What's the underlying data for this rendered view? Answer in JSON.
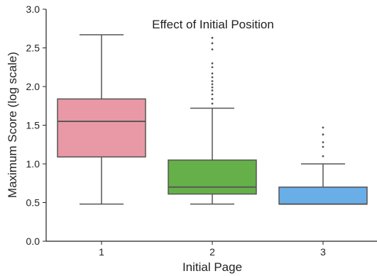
{
  "chart_data": {
    "type": "box",
    "title": "Effect of Initial Position",
    "xlabel": "Initial Page",
    "ylabel": "Maximum Score (log scale)",
    "ylim": [
      0.0,
      3.0
    ],
    "yticks": [
      "0.0",
      "0.5",
      "1.0",
      "1.5",
      "2.0",
      "2.5",
      "3.0"
    ],
    "categories": [
      "1",
      "2",
      "3"
    ],
    "boxes": [
      {
        "category": "1",
        "color": "#e899a5",
        "whisker_low": 0.48,
        "q1": 1.09,
        "median": 1.55,
        "q3": 1.84,
        "whisker_high": 2.67,
        "outliers": []
      },
      {
        "category": "2",
        "color": "#66b04a",
        "whisker_low": 0.48,
        "q1": 0.61,
        "median": 0.7,
        "q3": 1.05,
        "whisker_high": 1.72,
        "outliers": [
          1.78,
          1.84,
          1.9,
          1.95,
          1.99,
          2.03,
          2.07,
          2.12,
          2.17,
          2.25,
          2.3,
          2.48,
          2.56,
          2.63
        ]
      },
      {
        "category": "3",
        "color": "#6aaee8",
        "whisker_low": 0.48,
        "q1": 0.48,
        "median": 0.48,
        "q3": 0.7,
        "whisker_high": 1.0,
        "outliers": [
          1.1,
          1.22,
          1.28,
          1.38,
          1.47
        ]
      }
    ]
  }
}
